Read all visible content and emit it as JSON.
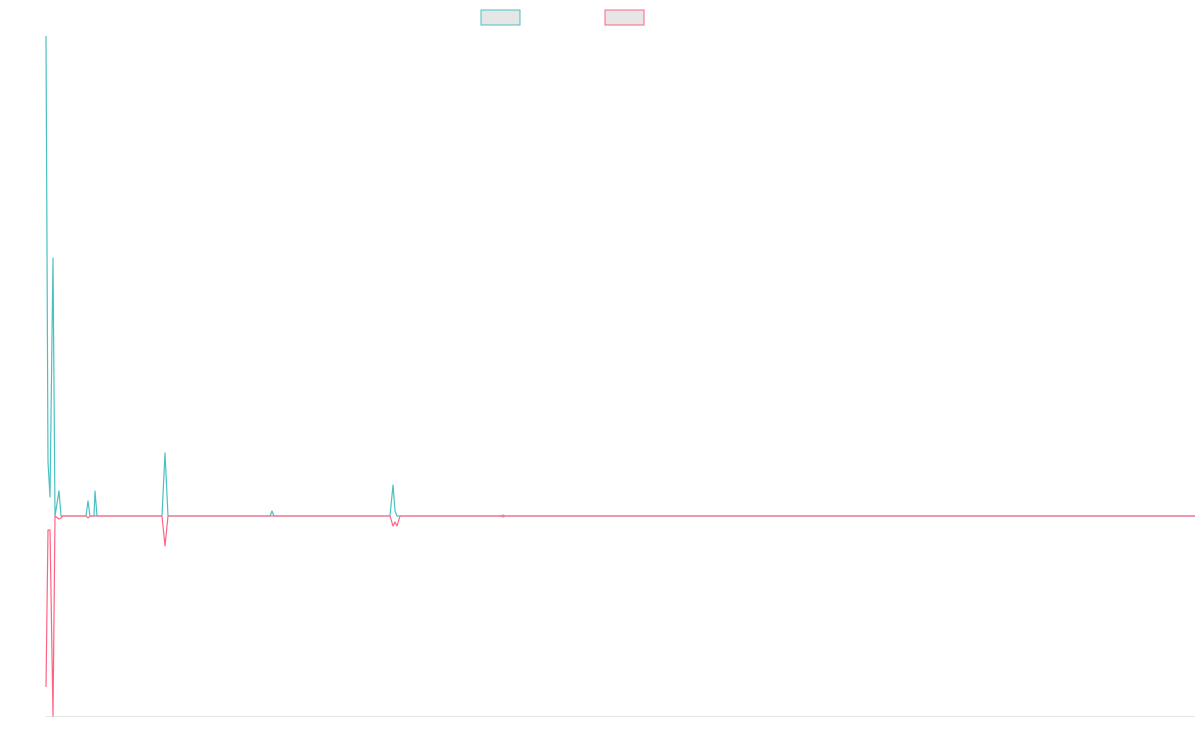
{
  "chart_data": {
    "type": "line",
    "x": [
      0,
      2,
      4,
      7,
      9,
      13,
      15,
      17,
      40,
      42,
      44,
      48,
      49,
      51,
      116,
      119,
      122,
      224,
      226,
      228,
      344,
      347,
      349,
      351,
      354,
      455,
      457,
      459,
      1149
    ],
    "series": [
      {
        "color": "#4bc0c0",
        "values": [
          480,
          54,
          19,
          258,
          0,
          25,
          0,
          0,
          0,
          15,
          0,
          0,
          25,
          0,
          0,
          63,
          0,
          0,
          5,
          0,
          0,
          31,
          5,
          0,
          0,
          0,
          1,
          0,
          0
        ]
      },
      {
        "color": "#ff6384",
        "values": [
          -171,
          -14,
          -14,
          -200,
          0,
          -3,
          -2,
          0,
          0,
          -2,
          0,
          0,
          0,
          0,
          0,
          -30,
          0,
          0,
          0,
          0,
          0,
          -10,
          -6,
          -10,
          0,
          0,
          -1,
          0,
          0
        ]
      }
    ],
    "xlim": [
      0,
      1149
    ],
    "ylim": [
      -200,
      480
    ]
  }
}
